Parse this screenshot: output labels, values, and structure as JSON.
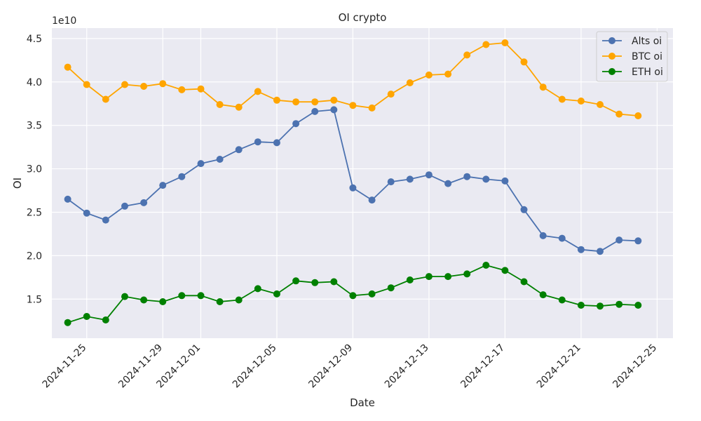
{
  "chart_data": {
    "type": "line",
    "title": "OI crypto",
    "xlabel": "Date",
    "ylabel": "OI",
    "y_offset_label": "1e10",
    "y_scale": 10000000000,
    "ylim": [
      1.05,
      4.62
    ],
    "xlim": [
      "2024-11-23 04:00",
      "2024-12-25 20:00"
    ],
    "x_ticks": [
      "2024-11-25",
      "2024-11-29",
      "2024-12-01",
      "2024-12-05",
      "2024-12-09",
      "2024-12-13",
      "2024-12-17",
      "2024-12-21",
      "2024-12-25"
    ],
    "y_ticks": [
      "1.5",
      "2.0",
      "2.5",
      "3.0",
      "3.5",
      "4.0",
      "4.5"
    ],
    "grid": true,
    "legend_position": "top-right",
    "background": "#eaeaf2",
    "x": [
      "2024-11-24",
      "2024-11-25",
      "2024-11-26",
      "2024-11-27",
      "2024-11-28",
      "2024-11-29",
      "2024-11-30",
      "2024-12-01",
      "2024-12-02",
      "2024-12-03",
      "2024-12-04",
      "2024-12-05",
      "2024-12-06",
      "2024-12-07",
      "2024-12-08",
      "2024-12-09",
      "2024-12-10",
      "2024-12-11",
      "2024-12-12",
      "2024-12-13",
      "2024-12-14",
      "2024-12-15",
      "2024-12-16",
      "2024-12-17",
      "2024-12-18",
      "2024-12-19",
      "2024-12-20",
      "2024-12-21",
      "2024-12-22",
      "2024-12-23",
      "2024-12-24"
    ],
    "series": [
      {
        "name": "Alts oi",
        "color": "#4c72b0",
        "values": [
          2.65,
          2.49,
          2.41,
          2.57,
          2.61,
          2.81,
          2.91,
          3.06,
          3.11,
          3.22,
          3.31,
          3.3,
          3.52,
          3.66,
          3.68,
          2.78,
          2.64,
          2.85,
          2.88,
          2.93,
          2.83,
          2.91,
          2.88,
          2.86,
          2.53,
          2.23,
          2.2,
          2.07,
          2.05,
          2.18,
          2.17
        ]
      },
      {
        "name": "BTC oi",
        "color": "#ffa500",
        "values": [
          4.17,
          3.97,
          3.8,
          3.97,
          3.95,
          3.98,
          3.91,
          3.92,
          3.74,
          3.71,
          3.89,
          3.79,
          3.77,
          3.77,
          3.79,
          3.73,
          3.7,
          3.86,
          3.99,
          4.08,
          4.09,
          4.31,
          4.43,
          4.45,
          4.23,
          3.94,
          3.8,
          3.78,
          3.74,
          3.63,
          3.61
        ]
      },
      {
        "name": "ETH oi",
        "color": "#008000",
        "values": [
          1.23,
          1.3,
          1.26,
          1.53,
          1.49,
          1.47,
          1.54,
          1.54,
          1.47,
          1.49,
          1.62,
          1.56,
          1.71,
          1.69,
          1.7,
          1.54,
          1.56,
          1.63,
          1.72,
          1.76,
          1.76,
          1.79,
          1.89,
          1.83,
          1.7,
          1.55,
          1.49,
          1.43,
          1.42,
          1.44,
          1.43
        ]
      }
    ]
  }
}
